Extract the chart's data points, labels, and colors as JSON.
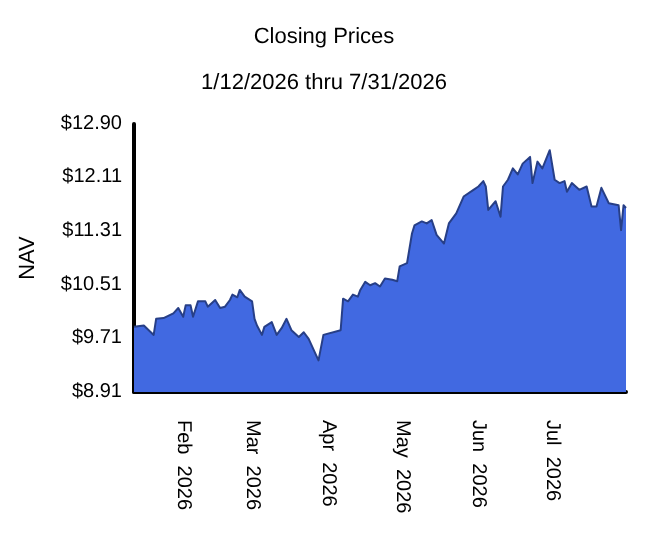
{
  "chart_data": {
    "type": "area",
    "title": "Closing Prices",
    "subtitle": "1/12/2026 thru 7/31/2026",
    "ylabel": "NAV",
    "x": [
      "2026-01-12",
      "2026-01-16",
      "2026-01-20",
      "2026-01-21",
      "2026-01-24",
      "2026-01-28",
      "2026-01-30",
      "2026-02-01",
      "2026-02-02",
      "2026-02-04",
      "2026-02-05",
      "2026-02-07",
      "2026-02-10",
      "2026-02-11",
      "2026-02-14",
      "2026-02-16",
      "2026-02-18",
      "2026-02-20",
      "2026-02-21",
      "2026-02-23",
      "2026-02-24",
      "2026-02-26",
      "2026-03-01",
      "2026-03-02",
      "2026-03-03",
      "2026-03-05",
      "2026-03-06",
      "2026-03-09",
      "2026-03-11",
      "2026-03-13",
      "2026-03-15",
      "2026-03-17",
      "2026-03-20",
      "2026-03-22",
      "2026-03-24",
      "2026-03-28",
      "2026-03-30",
      "2026-04-06",
      "2026-04-07",
      "2026-04-09",
      "2026-04-11",
      "2026-04-13",
      "2026-04-14",
      "2026-04-16",
      "2026-04-18",
      "2026-04-20",
      "2026-04-22",
      "2026-04-24",
      "2026-04-27",
      "2026-04-29",
      "2026-04-30",
      "2026-05-03",
      "2026-05-05",
      "2026-05-06",
      "2026-05-09",
      "2026-05-11",
      "2026-05-13",
      "2026-05-15",
      "2026-05-18",
      "2026-05-20",
      "2026-05-23",
      "2026-05-26",
      "2026-05-30",
      "2026-06-01",
      "2026-06-03",
      "2026-06-04",
      "2026-06-05",
      "2026-06-08",
      "2026-06-10",
      "2026-06-11",
      "2026-06-13",
      "2026-06-15",
      "2026-06-17",
      "2026-06-19",
      "2026-06-22",
      "2026-06-23",
      "2026-06-25",
      "2026-06-27",
      "2026-06-30",
      "2026-07-02",
      "2026-07-04",
      "2026-07-06",
      "2026-07-07",
      "2026-07-09",
      "2026-07-12",
      "2026-07-15",
      "2026-07-17",
      "2026-07-19",
      "2026-07-21",
      "2026-07-24",
      "2026-07-28",
      "2026-07-29",
      "2026-07-30",
      "2026-07-31"
    ],
    "series": [
      {
        "color": "#4169e1",
        "values": [
          9.88,
          9.9,
          9.76,
          10.0,
          10.01,
          10.08,
          10.16,
          10.03,
          10.2,
          10.2,
          10.03,
          10.26,
          10.26,
          10.18,
          10.28,
          10.16,
          10.18,
          10.28,
          10.36,
          10.32,
          10.43,
          10.33,
          10.26,
          10.0,
          9.9,
          9.76,
          9.88,
          9.95,
          9.76,
          9.86,
          10.0,
          9.83,
          9.73,
          9.8,
          9.7,
          9.38,
          9.76,
          9.83,
          10.3,
          10.26,
          10.36,
          10.33,
          10.43,
          10.55,
          10.5,
          10.53,
          10.48,
          10.6,
          10.58,
          10.56,
          10.78,
          10.83,
          11.27,
          11.39,
          11.45,
          11.42,
          11.47,
          11.25,
          11.12,
          11.42,
          11.57,
          11.82,
          11.92,
          11.97,
          12.05,
          11.97,
          11.62,
          11.75,
          11.52,
          11.97,
          12.07,
          12.24,
          12.15,
          12.31,
          12.41,
          12.02,
          12.34,
          12.24,
          12.51,
          12.07,
          12.02,
          12.05,
          11.89,
          12.02,
          11.92,
          11.97,
          11.67,
          11.67,
          11.95,
          11.72,
          11.69,
          11.32,
          11.69,
          11.65
        ]
      }
    ],
    "xlim": [
      "2026-01-12",
      "2026-07-31"
    ],
    "xticks": [
      {
        "value": "2026-02-01",
        "label": "Feb 2026"
      },
      {
        "value": "2026-03-01",
        "label": "Mar 2026"
      },
      {
        "value": "2026-04-01",
        "label": "Apr 2026"
      },
      {
        "value": "2026-05-01",
        "label": "May 2026"
      },
      {
        "value": "2026-06-01",
        "label": "Jun 2026"
      },
      {
        "value": "2026-07-01",
        "label": "Jul 2026"
      }
    ],
    "ylim": [
      8.91,
      12.9
    ],
    "yticks": [
      {
        "value": 8.91,
        "label": "$8.91"
      },
      {
        "value": 9.71,
        "label": "$9.71"
      },
      {
        "value": 10.51,
        "label": "$10.51"
      },
      {
        "value": 11.31,
        "label": "$11.31"
      },
      {
        "value": 12.11,
        "label": "$12.11"
      },
      {
        "value": 12.9,
        "label": "$12.90"
      }
    ],
    "grid": false,
    "marker": "none"
  }
}
